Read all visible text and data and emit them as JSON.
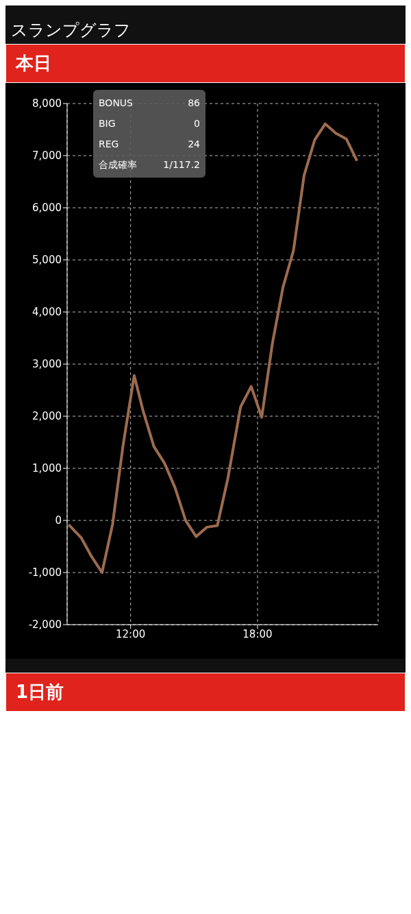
{
  "chart_data": {
    "type": "line",
    "title": "スランプグラフ",
    "subtitle": "本日",
    "annotations": [
      "BONUS",
      "86",
      "BIG",
      "0",
      "REG",
      "24",
      "合成確率",
      "1/117.2",
      "1日前"
    ],
    "x": [
      9.07,
      9.66,
      10.15,
      10.65,
      11.15,
      11.64,
      12.17,
      12.6,
      13.1,
      13.6,
      14.1,
      14.6,
      15.1,
      15.6,
      16.1,
      16.6,
      17.2,
      17.7,
      18.2,
      18.7,
      19.2,
      19.7,
      20.2,
      20.7,
      21.2,
      21.7,
      22.2,
      22.7
    ],
    "series": [
      {
        "color": "#9c6b4e",
        "values": [
          -80,
          -330,
          -690,
          -1000,
          -70,
          1430,
          2780,
          2090,
          1420,
          1100,
          630,
          0,
          -310,
          -130,
          -100,
          810,
          2180,
          2570,
          1980,
          3390,
          4470,
          5180,
          6620,
          7300,
          7610,
          7430,
          7320,
          6900
        ]
      }
    ],
    "xlim": [
      9,
      23.7
    ],
    "xticks": [
      {
        "value": 12,
        "label": "12:00"
      },
      {
        "value": 18,
        "label": "18:00"
      }
    ],
    "ylim": [
      -2000,
      8000
    ],
    "yticks": [
      {
        "value": -2000,
        "label": "-2,000"
      },
      {
        "value": -1000,
        "label": "-1,000"
      },
      0,
      {
        "value": 1000,
        "label": "1,000"
      },
      {
        "value": 2000,
        "label": "2,000"
      },
      {
        "value": 3000,
        "label": "3,000"
      },
      {
        "value": 4000,
        "label": "4,000"
      },
      {
        "value": 5000,
        "label": "5,000"
      },
      {
        "value": 6000,
        "label": "6,000"
      },
      {
        "value": 7000,
        "label": "7,000"
      },
      {
        "value": 8000,
        "label": "8,000"
      }
    ],
    "grid": true,
    "marker": "none",
    "line_style": "solid"
  }
}
